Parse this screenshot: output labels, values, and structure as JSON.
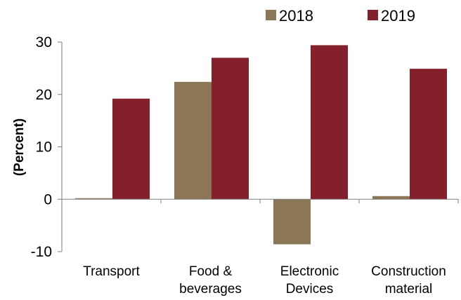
{
  "chart_data": {
    "type": "bar",
    "categories": [
      [
        "Transport"
      ],
      [
        "Food &",
        "beverages"
      ],
      [
        "Electronic",
        "Devices"
      ],
      [
        "Construction",
        "material"
      ]
    ],
    "series": [
      {
        "name": "2018",
        "values": [
          0.2,
          22.4,
          -8.6,
          0.6
        ],
        "color": "#8b7755"
      },
      {
        "name": "2019",
        "values": [
          19.2,
          27.0,
          29.4,
          24.9
        ],
        "color": "#84202b"
      }
    ],
    "ylabel": "(Percent)",
    "ylim": [
      -10,
      30
    ],
    "yticks": [
      -10,
      0,
      10,
      20,
      30
    ],
    "grid": false,
    "legend": "top-right"
  }
}
